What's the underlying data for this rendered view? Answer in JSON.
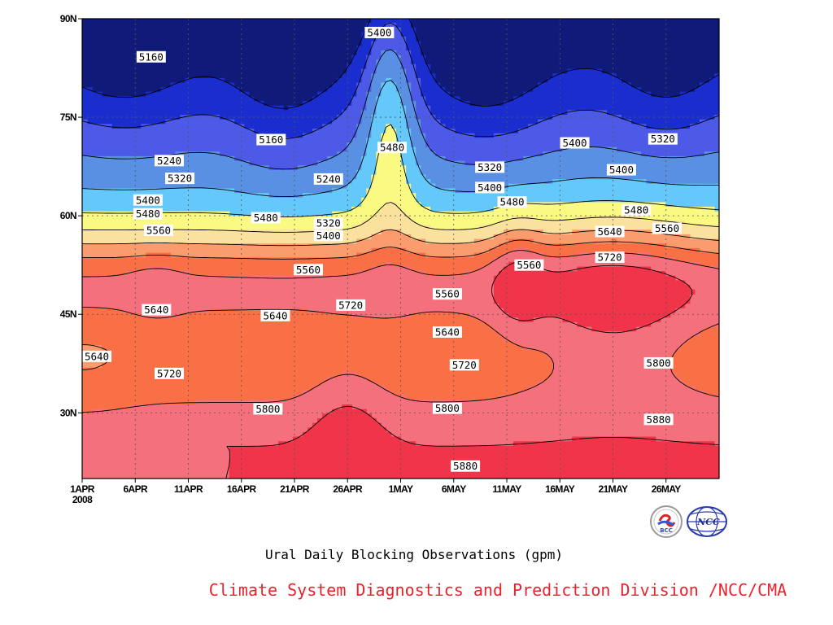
{
  "chart_data": {
    "type": "heatmap",
    "subtype": "filled contour (latitude-time, 500 hPa geopotential height)",
    "title": "Ural Daily Blocking Observations (gpm)",
    "xlabel": "",
    "ylabel": "",
    "x_range": [
      "2008-04-01",
      "2008-05-30"
    ],
    "x_ticks": [
      {
        "day": 0,
        "label": "1APR",
        "sub": "2008"
      },
      {
        "day": 5,
        "label": "6APR"
      },
      {
        "day": 10,
        "label": "11APR"
      },
      {
        "day": 15,
        "label": "16APR"
      },
      {
        "day": 20,
        "label": "21APR"
      },
      {
        "day": 25,
        "label": "26APR"
      },
      {
        "day": 30,
        "label": "1MAY"
      },
      {
        "day": 35,
        "label": "6MAY"
      },
      {
        "day": 40,
        "label": "11MAY"
      },
      {
        "day": 45,
        "label": "16MAY"
      },
      {
        "day": 50,
        "label": "21MAY"
      },
      {
        "day": 55,
        "label": "26MAY"
      }
    ],
    "ylim": [
      20,
      90
    ],
    "y_ticks": [
      {
        "value": 30,
        "label": "30N"
      },
      {
        "value": 45,
        "label": "45N"
      },
      {
        "value": 60,
        "label": "60N"
      },
      {
        "value": 75,
        "label": "75N"
      },
      {
        "value": 90,
        "label": "90N"
      }
    ],
    "grid": "dotted at labeled ticks",
    "contour_levels": [
      5160,
      5240,
      5320,
      5400,
      5480,
      5560,
      5640,
      5720,
      5800,
      5880
    ],
    "colors": [
      "#101a78",
      "#1a2ed0",
      "#4d5ae8",
      "#5a90e4",
      "#64c8fa",
      "#fafa82",
      "#fae19d",
      "#fa9c6e",
      "#fa7046",
      "#f4707c",
      "#f0344a"
    ],
    "contour_labels": [
      {
        "text": "5160",
        "day": 6.5,
        "lat": 84.2
      },
      {
        "text": "5160",
        "day": 17.8,
        "lat": 71.6
      },
      {
        "text": "5240",
        "day": 8.2,
        "lat": 68.4
      },
      {
        "text": "5240",
        "day": 23.2,
        "lat": 65.6
      },
      {
        "text": "5320",
        "day": 9.2,
        "lat": 65.7
      },
      {
        "text": "5320",
        "day": 38.4,
        "lat": 67.4
      },
      {
        "text": "5320",
        "day": 54.7,
        "lat": 71.7
      },
      {
        "text": "5320",
        "day": 23.2,
        "lat": 58.9
      },
      {
        "text": "5400",
        "day": 28.0,
        "lat": 87.9
      },
      {
        "text": "5400",
        "day": 6.2,
        "lat": 62.4
      },
      {
        "text": "5400",
        "day": 38.4,
        "lat": 64.3
      },
      {
        "text": "5400",
        "day": 46.4,
        "lat": 71.1
      },
      {
        "text": "5400",
        "day": 50.8,
        "lat": 67.0
      },
      {
        "text": "5400",
        "day": 23.2,
        "lat": 57.0
      },
      {
        "text": "5480",
        "day": 29.2,
        "lat": 70.4
      },
      {
        "text": "5480",
        "day": 6.2,
        "lat": 60.3
      },
      {
        "text": "5480",
        "day": 17.3,
        "lat": 59.7
      },
      {
        "text": "5480",
        "day": 40.5,
        "lat": 62.1
      },
      {
        "text": "5480",
        "day": 52.2,
        "lat": 60.9
      },
      {
        "text": "5560",
        "day": 7.2,
        "lat": 57.8
      },
      {
        "text": "5560",
        "day": 21.3,
        "lat": 51.8
      },
      {
        "text": "5560",
        "day": 34.4,
        "lat": 48.1
      },
      {
        "text": "5560",
        "day": 42.1,
        "lat": 52.5
      },
      {
        "text": "5560",
        "day": 55.1,
        "lat": 58.1
      },
      {
        "text": "5640",
        "day": 7.0,
        "lat": 45.7
      },
      {
        "text": "5640",
        "day": 18.2,
        "lat": 44.8
      },
      {
        "text": "5640",
        "day": 34.4,
        "lat": 42.3
      },
      {
        "text": "5640",
        "day": 49.7,
        "lat": 57.6
      },
      {
        "text": "5640",
        "day": 0.3,
        "lat": 38.6
      },
      {
        "text": "5720",
        "day": 25.3,
        "lat": 46.4
      },
      {
        "text": "5720",
        "day": 8.2,
        "lat": 36.0
      },
      {
        "text": "5720",
        "day": 36.0,
        "lat": 37.3
      },
      {
        "text": "5720",
        "day": 49.7,
        "lat": 53.7
      },
      {
        "text": "5800",
        "day": 17.5,
        "lat": 30.6
      },
      {
        "text": "5800",
        "day": 34.4,
        "lat": 30.7
      },
      {
        "text": "5800",
        "day": 54.3,
        "lat": 37.6
      },
      {
        "text": "5880",
        "day": 36.1,
        "lat": 21.9
      },
      {
        "text": "5880",
        "day": 54.3,
        "lat": 29.0
      }
    ]
  },
  "footer": {
    "credit": "Climate System Diagnostics and Prediction Division /NCC/CMA",
    "credit_color": "#e8232d",
    "logos": [
      {
        "icon": "bcc-logo",
        "text": "BCC"
      },
      {
        "icon": "ncc-cma-globe-logo",
        "text": "NCC"
      }
    ]
  }
}
